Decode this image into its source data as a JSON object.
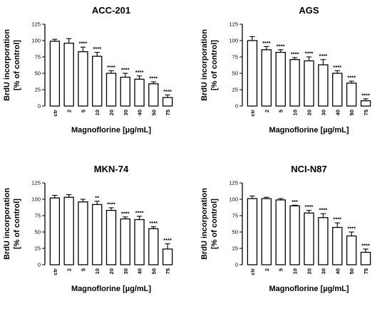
{
  "chart_data": [
    {
      "type": "bar",
      "title": "ACC-201",
      "xlabel": "Magnoflorine [µg/mL]",
      "ylabel": [
        "BrdU incorporation",
        "[% of control]"
      ],
      "ylim": [
        0,
        125
      ],
      "yticks": [
        "0",
        "25",
        "50",
        "75",
        "100",
        "125"
      ],
      "categories": [
        "ctr",
        "2",
        "5",
        "10",
        "20",
        "30",
        "40",
        "50",
        "75"
      ],
      "values": [
        99,
        96,
        83,
        76,
        50,
        44,
        41,
        34,
        13
      ],
      "errors": [
        3,
        7,
        7,
        6,
        4,
        6,
        5,
        3,
        4
      ],
      "significance": [
        "",
        "",
        "****",
        "****",
        "****",
        "****",
        "****",
        "****",
        "****"
      ]
    },
    {
      "type": "bar",
      "title": "AGS",
      "xlabel": "Magnoflorine [µg/mL]",
      "ylabel": [
        "BrdU incorporation",
        "[% of control]"
      ],
      "ylim": [
        0,
        125
      ],
      "yticks": [
        "0",
        "25",
        "50",
        "75",
        "100",
        "125"
      ],
      "categories": [
        "ctr",
        "2",
        "5",
        "10",
        "20",
        "30",
        "40",
        "50",
        "75"
      ],
      "values": [
        100,
        86,
        82,
        71,
        69,
        63,
        50,
        35,
        8
      ],
      "errors": [
        6,
        5,
        4,
        3,
        6,
        8,
        4,
        3,
        3
      ],
      "significance": [
        "",
        "****",
        "****",
        "****",
        "****",
        "****",
        "****",
        "****",
        "****"
      ]
    },
    {
      "type": "bar",
      "title": "MKN-74",
      "xlabel": "Magnoflorine [µg/mL]",
      "ylabel": [
        "BrdU incorporation",
        "[% of control]"
      ],
      "ylim": [
        0,
        125
      ],
      "yticks": [
        "0",
        "25",
        "50",
        "75",
        "100",
        "125"
      ],
      "categories": [
        "ctr",
        "2",
        "5",
        "10",
        "20",
        "30",
        "40",
        "50",
        "75"
      ],
      "values": [
        102,
        103,
        96,
        92,
        83,
        70,
        69,
        55,
        24
      ],
      "errors": [
        4,
        4,
        4,
        5,
        4,
        3,
        5,
        3,
        8
      ],
      "significance": [
        "",
        "",
        "",
        "**",
        "****",
        "****",
        "****",
        "****",
        "****"
      ]
    },
    {
      "type": "bar",
      "title": "NCI-N87",
      "xlabel": "Magnoflorine [µg/mL]",
      "ylabel": [
        "BrdU incorporation",
        "[% of control]"
      ],
      "ylim": [
        0,
        125
      ],
      "yticks": [
        "0",
        "25",
        "50",
        "75",
        "100",
        "125"
      ],
      "categories": [
        "ctr",
        "2",
        "5",
        "10",
        "20",
        "30",
        "40",
        "50",
        "75"
      ],
      "values": [
        101,
        101,
        99,
        90,
        79,
        72,
        57,
        44,
        19
      ],
      "errors": [
        4,
        2,
        2,
        1,
        4,
        6,
        7,
        6,
        5
      ],
      "significance": [
        "",
        "",
        "",
        "***",
        "****",
        "****",
        "****",
        "****",
        "****"
      ]
    }
  ]
}
